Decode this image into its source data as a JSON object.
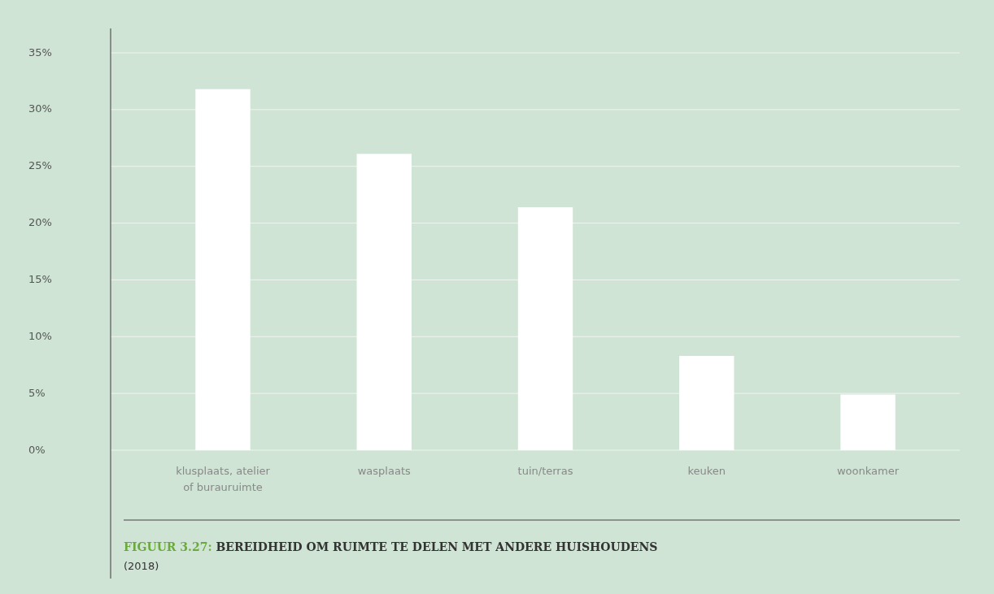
{
  "chart_data": {
    "type": "bar",
    "title": "FIGUUR 3.27: BEREIDHEID OM RUIMTE TE DELEN MET ANDERE HUISHOUDENS",
    "categories": [
      "klusplaats, atelier of burauruimte",
      "wasplaats",
      "tuin/terras",
      "keuken",
      "woonkamer"
    ],
    "values": [
      31.8,
      26.1,
      21.4,
      8.3,
      4.9
    ],
    "color": "#ffffff",
    "ylim": [
      0,
      35
    ],
    "yticks": [
      {
        "value": 0,
        "label": "0%"
      },
      {
        "value": 5,
        "label": "5%"
      },
      {
        "value": 10,
        "label": "10%"
      },
      {
        "value": 15,
        "label": "15%"
      },
      {
        "value": 20,
        "label": "20%"
      },
      {
        "value": 25,
        "label": "25%"
      },
      {
        "value": 30,
        "label": "30%"
      },
      {
        "value": 35,
        "label": "35%"
      }
    ],
    "grid": "y",
    "annotations": [
      "(2018)"
    ]
  }
}
